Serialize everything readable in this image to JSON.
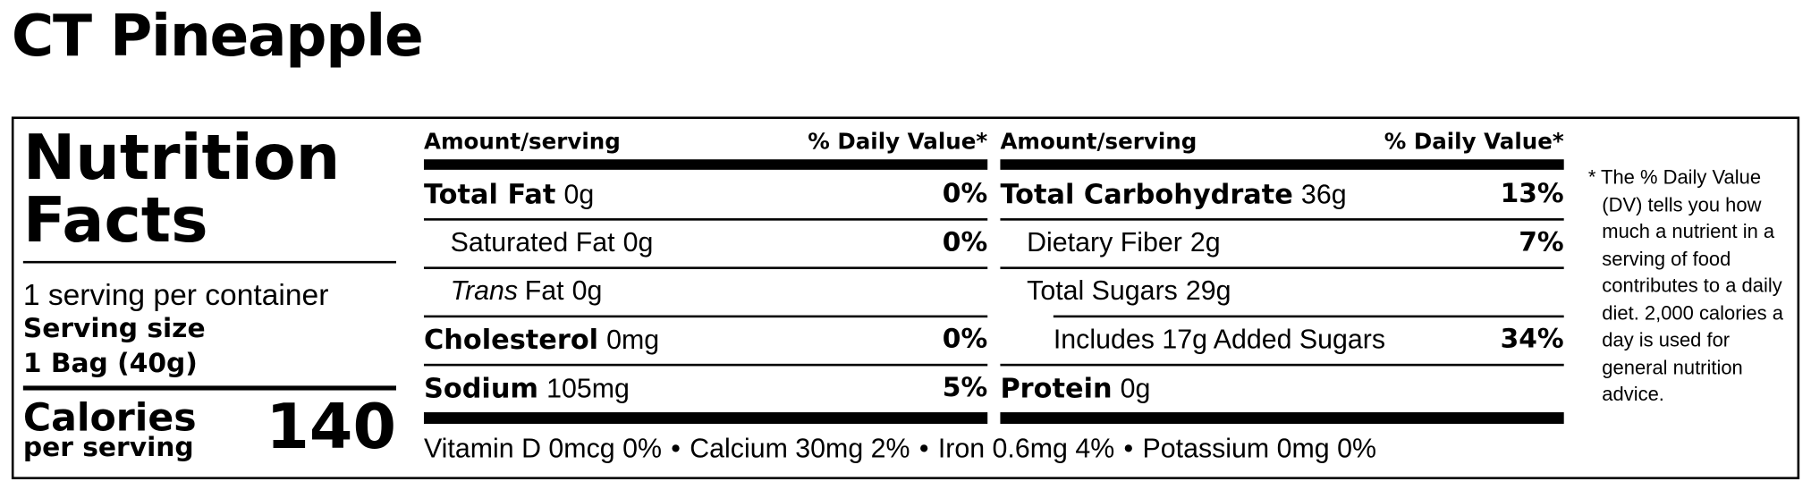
{
  "title": "CT Pineapple",
  "label": {
    "heading": [
      "Nutrition",
      "Facts"
    ],
    "servings_per_container": "1 serving per container",
    "serving_size_label": "Serving size",
    "serving_size": "1 Bag (40g)",
    "calories_label": "Calories",
    "calories_sub": "per serving",
    "calories": "140",
    "columns": [
      {
        "header_amount": "Amount/serving",
        "header_dv": "% Daily Value*",
        "rows": [
          {
            "name": "Total Fat",
            "amount": "0g",
            "dv": "0%",
            "bold": true,
            "level": 0
          },
          {
            "name": "Saturated Fat",
            "amount": "0g",
            "dv": "0%",
            "bold": false,
            "level": 1
          },
          {
            "name": "Trans",
            "name_rest": "Fat",
            "amount": "0g",
            "bold": false,
            "level": 1
          },
          {
            "name": "Cholesterol",
            "amount": "0mg",
            "dv": "0%",
            "bold": true,
            "level": 0
          },
          {
            "name": "Sodium",
            "amount": "105mg",
            "dv": "5%",
            "bold": true,
            "level": 0
          }
        ]
      },
      {
        "header_amount": "Amount/serving",
        "header_dv": "% Daily Value*",
        "rows": [
          {
            "name": "Total Carbohydrate",
            "amount": "36g",
            "dv": "13%",
            "bold": true,
            "level": 0
          },
          {
            "name": "Dietary Fiber",
            "amount": "2g",
            "dv": "7%",
            "bold": false,
            "level": 1
          },
          {
            "name": "Total Sugars",
            "amount": "29g",
            "bold": false,
            "level": 1
          },
          {
            "name": "Includes 17g Added Sugars",
            "dv": "34%",
            "bold": false,
            "level": 2
          },
          {
            "name": "Protein",
            "amount": "0g",
            "bold": true,
            "level": 0
          }
        ]
      }
    ],
    "vitamins": [
      "Vitamin D 0mcg 0%",
      "Calcium 30mg 2%",
      "Iron 0.6mg 4%",
      "Potassium 0mg 0%"
    ],
    "separator": "•",
    "footnote": "* The % Daily Value (DV) tells you how much a nutrient in a serving of food contributes to a daily diet. 2,000 calories a day is used for general nutrition advice."
  }
}
